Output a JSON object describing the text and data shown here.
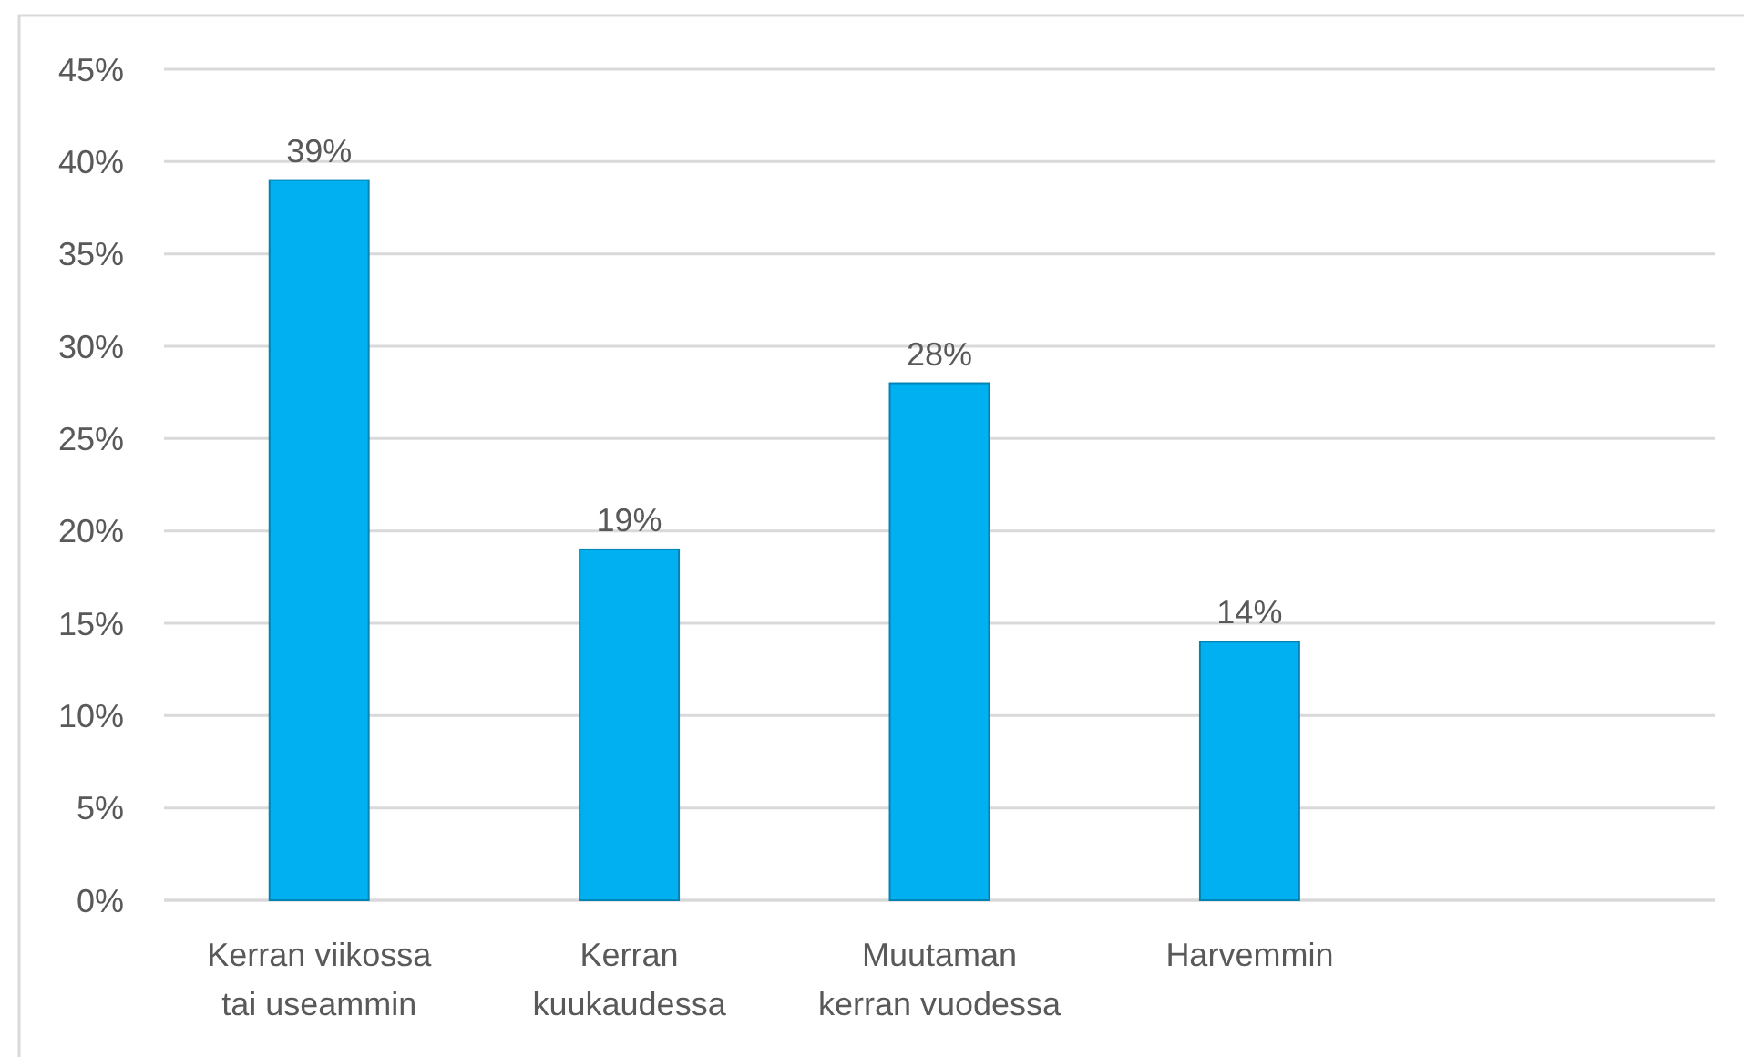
{
  "chart_data": {
    "type": "bar",
    "categories": [
      "Kerran viikossa tai useammin",
      "Kerran kuukaudessa",
      "Muutaman kerran vuodessa",
      "Harvemmin",
      null
    ],
    "values": [
      39,
      19,
      28,
      14,
      null
    ],
    "value_labels": [
      "39%",
      "19%",
      "28%",
      "14%",
      null
    ],
    "color": "#00b0f0",
    "ylim": [
      0,
      45
    ],
    "yticks": [
      {
        "value": 0,
        "label": "0%"
      },
      {
        "value": 5,
        "label": "5%"
      },
      {
        "value": 10,
        "label": "10%"
      },
      {
        "value": 15,
        "label": "15%"
      },
      {
        "value": 20,
        "label": "20%"
      },
      {
        "value": 25,
        "label": "25%"
      },
      {
        "value": 30,
        "label": "30%"
      },
      {
        "value": 35,
        "label": "35%"
      },
      {
        "value": 40,
        "label": "40%"
      },
      {
        "value": 45,
        "label": "45%"
      }
    ],
    "grid": "y"
  }
}
